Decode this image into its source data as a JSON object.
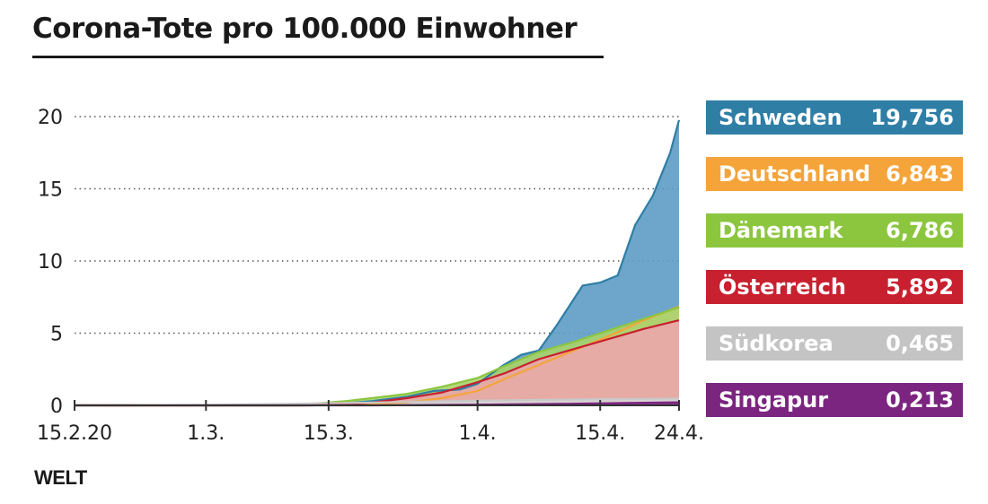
{
  "title": "Corona-Tote pro 100.000 Einwohner",
  "brand": "WELT",
  "chart_data": {
    "type": "area",
    "title": "Corona-Tote pro 100.000 Einwohner",
    "xlabel": "",
    "ylabel": "",
    "ylim": [
      0,
      20
    ],
    "yticks": [
      "0",
      "5",
      "10",
      "15",
      "20"
    ],
    "xlim": [
      "2020-02-15",
      "2020-04-24"
    ],
    "xticks": [
      {
        "date": "2020-02-15",
        "label": "15.2.20"
      },
      {
        "date": "2020-03-01",
        "label": "1.3."
      },
      {
        "date": "2020-03-15",
        "label": "15.3."
      },
      {
        "date": "2020-04-01",
        "label": "1.4."
      },
      {
        "date": "2020-04-15",
        "label": "15.4."
      },
      {
        "date": "2020-04-24",
        "label": "24.4."
      }
    ],
    "grid": "horizontal dotted",
    "legend_position": "right",
    "series": [
      {
        "name": "Schweden",
        "final_label": "19,756",
        "color": "#2e7ea6",
        "fill": "#5d9cc4",
        "points": [
          [
            "2020-02-15",
            0
          ],
          [
            "2020-03-10",
            0
          ],
          [
            "2020-03-12",
            0.02
          ],
          [
            "2020-03-16",
            0.1
          ],
          [
            "2020-03-20",
            0.3
          ],
          [
            "2020-03-24",
            0.6
          ],
          [
            "2020-03-27",
            1.0
          ],
          [
            "2020-03-30",
            1.1
          ],
          [
            "2020-04-01",
            1.5
          ],
          [
            "2020-04-04",
            2.8
          ],
          [
            "2020-04-06",
            3.5
          ],
          [
            "2020-04-08",
            3.8
          ],
          [
            "2020-04-10",
            5.5
          ],
          [
            "2020-04-13",
            8.3
          ],
          [
            "2020-04-15",
            8.5
          ],
          [
            "2020-04-17",
            9.0
          ],
          [
            "2020-04-19",
            12.5
          ],
          [
            "2020-04-21",
            14.5
          ],
          [
            "2020-04-23",
            17.5
          ],
          [
            "2020-04-24",
            19.756
          ]
        ]
      },
      {
        "name": "Deutschland",
        "final_label": "6,843",
        "color": "#f5a43a",
        "fill": "#f7c08a",
        "points": [
          [
            "2020-02-15",
            0
          ],
          [
            "2020-03-12",
            0
          ],
          [
            "2020-03-16",
            0.02
          ],
          [
            "2020-03-20",
            0.08
          ],
          [
            "2020-03-24",
            0.2
          ],
          [
            "2020-03-28",
            0.5
          ],
          [
            "2020-04-01",
            1.0
          ],
          [
            "2020-04-04",
            1.8
          ],
          [
            "2020-04-08",
            2.8
          ],
          [
            "2020-04-12",
            3.8
          ],
          [
            "2020-04-16",
            4.8
          ],
          [
            "2020-04-20",
            5.9
          ],
          [
            "2020-04-24",
            6.843
          ]
        ]
      },
      {
        "name": "Dänemark",
        "final_label": "6,786",
        "color": "#8cc63f",
        "fill": "#a8d46a",
        "points": [
          [
            "2020-02-15",
            0
          ],
          [
            "2020-03-12",
            0
          ],
          [
            "2020-03-14",
            0.15
          ],
          [
            "2020-03-17",
            0.3
          ],
          [
            "2020-03-20",
            0.5
          ],
          [
            "2020-03-24",
            0.8
          ],
          [
            "2020-03-28",
            1.3
          ],
          [
            "2020-04-01",
            1.9
          ],
          [
            "2020-04-04",
            2.7
          ],
          [
            "2020-04-08",
            3.7
          ],
          [
            "2020-04-12",
            4.4
          ],
          [
            "2020-04-16",
            5.2
          ],
          [
            "2020-04-20",
            6.0
          ],
          [
            "2020-04-24",
            6.786
          ]
        ]
      },
      {
        "name": "Österreich",
        "final_label": "5,892",
        "color": "#c8202f",
        "fill": "#eba6aa",
        "points": [
          [
            "2020-02-15",
            0
          ],
          [
            "2020-03-13",
            0
          ],
          [
            "2020-03-16",
            0.05
          ],
          [
            "2020-03-20",
            0.2
          ],
          [
            "2020-03-24",
            0.5
          ],
          [
            "2020-03-28",
            0.9
          ],
          [
            "2020-04-01",
            1.6
          ],
          [
            "2020-04-04",
            2.2
          ],
          [
            "2020-04-08",
            3.2
          ],
          [
            "2020-04-12",
            3.9
          ],
          [
            "2020-04-16",
            4.6
          ],
          [
            "2020-04-20",
            5.3
          ],
          [
            "2020-04-24",
            5.892
          ]
        ]
      },
      {
        "name": "Südkorea",
        "final_label": "0,465",
        "color": "#c8c8c8",
        "fill": "#d6d6d6",
        "points": [
          [
            "2020-02-15",
            0
          ],
          [
            "2020-02-21",
            0.01
          ],
          [
            "2020-03-01",
            0.04
          ],
          [
            "2020-03-10",
            0.1
          ],
          [
            "2020-03-20",
            0.2
          ],
          [
            "2020-04-01",
            0.33
          ],
          [
            "2020-04-12",
            0.41
          ],
          [
            "2020-04-24",
            0.465
          ]
        ]
      },
      {
        "name": "Singapur",
        "final_label": "0,213",
        "color": "#7b2580",
        "fill": "#7b2580",
        "points": [
          [
            "2020-02-15",
            0
          ],
          [
            "2020-03-20",
            0
          ],
          [
            "2020-03-24",
            0.02
          ],
          [
            "2020-04-01",
            0.05
          ],
          [
            "2020-04-10",
            0.1
          ],
          [
            "2020-04-18",
            0.17
          ],
          [
            "2020-04-24",
            0.213
          ]
        ]
      }
    ]
  }
}
